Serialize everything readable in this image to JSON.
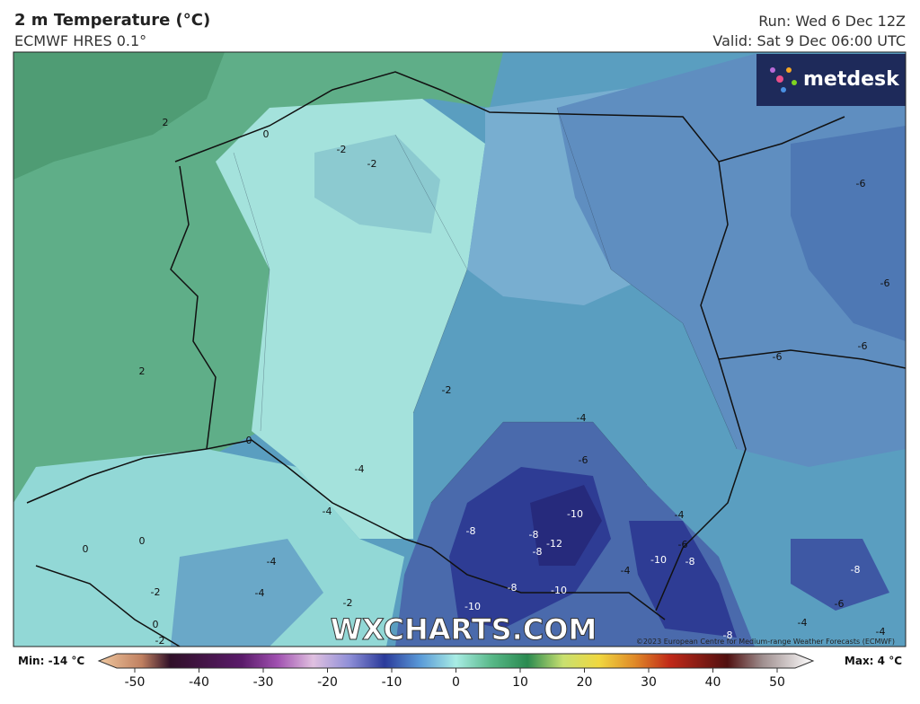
{
  "header": {
    "title": "2 m Temperature (°C)",
    "subtitle": "ECMWF HRES 0.1°",
    "run": "Run: Wed 6 Dec 12Z",
    "valid": "Valid: Sat 9 Dec 06:00 UTC"
  },
  "logo": "metdesk",
  "watermark": "WXCHARTS.COM",
  "copyright": "©2023 European Centre for Medium-range Weather Forecasts (ECMWF)",
  "map": {
    "contour_labels": [
      "2",
      "0",
      "-2",
      "-2",
      "-6",
      "-6",
      "-6",
      "-6",
      "2",
      "-2",
      "-4",
      "0",
      "-6",
      "-4",
      "-4",
      "-10",
      "-4",
      "-8",
      "-8",
      "0",
      "0",
      "-12",
      "-8",
      "-6",
      "-10",
      "-8",
      "-8",
      "-4",
      "-4",
      "-8",
      "-10",
      "-2",
      "-4",
      "-10",
      "-2",
      "-6",
      "0",
      "-4",
      "-2",
      "-8",
      "-4"
    ]
  },
  "legend": {
    "min": "Min: -14 °C",
    "max": "Max: 4 °C",
    "ticks": [
      -50,
      -40,
      -30,
      -20,
      -10,
      0,
      10,
      20,
      30,
      40,
      50
    ]
  }
}
